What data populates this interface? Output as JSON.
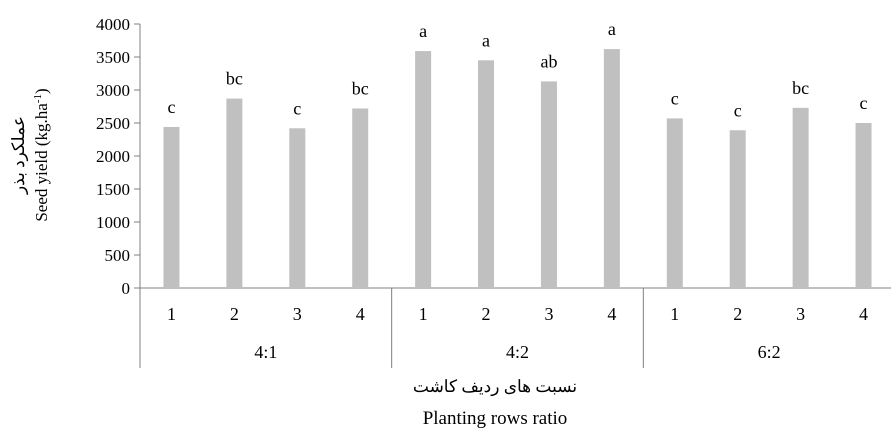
{
  "chart_data": {
    "type": "bar",
    "groups": [
      "4:1",
      "4:2",
      "6:2"
    ],
    "categories": [
      "1",
      "2",
      "3",
      "4"
    ],
    "series": [
      {
        "values": [
          [
            2440,
            2870,
            2420,
            2720
          ],
          [
            3590,
            3450,
            3130,
            3620
          ],
          [
            2570,
            2390,
            2730,
            2500
          ]
        ],
        "significance_letters": [
          [
            "c",
            "bc",
            "c",
            "bc"
          ],
          [
            "a",
            "a",
            "ab",
            "a"
          ],
          [
            "c",
            "c",
            "bc",
            "c"
          ]
        ]
      }
    ],
    "ylim": [
      0,
      4000
    ],
    "yticks": [
      0,
      500,
      1000,
      1500,
      2000,
      2500,
      3000,
      3500,
      4000
    ],
    "ylabel_fa": "عملکرد بذر",
    "ylabel": "Seed yield (kg.ha",
    "ylabel_sup": "-1",
    "ylabel_close": ")",
    "xlabel_fa": "نسبت های ردیف کاشت",
    "xlabel": "Planting rows ratio",
    "bar_color": "#c0c0c0",
    "axis_color": "#808080",
    "grid": false,
    "legend": "none"
  }
}
